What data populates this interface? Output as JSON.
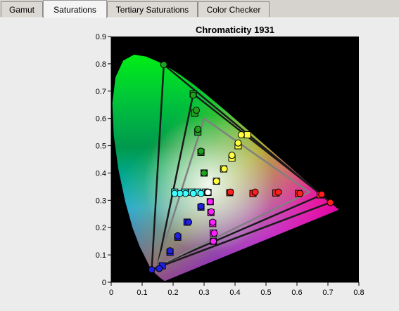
{
  "tabs": [
    {
      "label": "Gamut",
      "active": false
    },
    {
      "label": "Saturations",
      "active": true
    },
    {
      "label": "Tertiary Saturations",
      "active": false
    },
    {
      "label": "Color Checker",
      "active": false
    }
  ],
  "chart_data": {
    "type": "scatter",
    "title": "Chromaticity 1931",
    "xlim": [
      0,
      0.8
    ],
    "ylim": [
      0,
      0.9
    ],
    "x_ticks": [
      "0",
      "0.1",
      "0.2",
      "0.3",
      "0.4",
      "0.5",
      "0.6",
      "0.7",
      "0.8"
    ],
    "y_ticks": [
      "0",
      "0.1",
      "0.2",
      "0.3",
      "0.4",
      "0.5",
      "0.6",
      "0.7",
      "0.8",
      "0.9"
    ],
    "background": "#000000",
    "gamut_triangles": [
      {
        "color": "#1a1a1a",
        "points": [
          [
            0.68,
            0.32
          ],
          [
            0.265,
            0.69
          ],
          [
            0.15,
            0.06
          ]
        ]
      },
      {
        "color": "#1a1a1a",
        "points": [
          [
            0.708,
            0.292
          ],
          [
            0.17,
            0.797
          ],
          [
            0.131,
            0.046
          ]
        ]
      },
      {
        "color": "#808080",
        "points": [
          [
            0.64,
            0.33
          ],
          [
            0.3,
            0.6
          ],
          [
            0.15,
            0.06
          ]
        ]
      }
    ],
    "series": [
      {
        "color": "#ff2020",
        "targets": [
          [
            0.383,
            0.328
          ],
          [
            0.458,
            0.325
          ],
          [
            0.532,
            0.327
          ],
          [
            0.605,
            0.325
          ],
          [
            0.675,
            0.32
          ]
        ],
        "measured": [
          [
            0.385,
            0.33
          ],
          [
            0.465,
            0.33
          ],
          [
            0.54,
            0.33
          ],
          [
            0.61,
            0.325
          ],
          [
            0.68,
            0.322
          ],
          [
            0.708,
            0.292
          ]
        ]
      },
      {
        "color": "#1fa01f",
        "targets": [
          [
            0.3,
            0.4
          ],
          [
            0.29,
            0.476
          ],
          [
            0.28,
            0.55
          ],
          [
            0.27,
            0.62
          ],
          [
            0.265,
            0.69
          ]
        ],
        "measured": [
          [
            0.3,
            0.4
          ],
          [
            0.29,
            0.48
          ],
          [
            0.28,
            0.56
          ],
          [
            0.275,
            0.63
          ],
          [
            0.265,
            0.685
          ],
          [
            0.17,
            0.797
          ]
        ]
      },
      {
        "color": "#2020e0",
        "targets": [
          [
            0.29,
            0.275
          ],
          [
            0.245,
            0.22
          ],
          [
            0.215,
            0.165
          ],
          [
            0.19,
            0.11
          ],
          [
            0.165,
            0.06
          ]
        ],
        "measured": [
          [
            0.29,
            0.278
          ],
          [
            0.25,
            0.22
          ],
          [
            0.215,
            0.17
          ],
          [
            0.19,
            0.115
          ],
          [
            0.155,
            0.05
          ],
          [
            0.131,
            0.046
          ]
        ]
      },
      {
        "color": "#ffff40",
        "targets": [
          [
            0.34,
            0.37
          ],
          [
            0.363,
            0.415
          ],
          [
            0.39,
            0.455
          ],
          [
            0.41,
            0.5
          ],
          [
            0.44,
            0.54
          ]
        ],
        "measured": [
          [
            0.34,
            0.37
          ],
          [
            0.365,
            0.415
          ],
          [
            0.39,
            0.465
          ],
          [
            0.41,
            0.51
          ],
          [
            0.42,
            0.54
          ]
        ]
      },
      {
        "color": "#40ffff",
        "targets": [
          [
            0.305,
            0.33
          ],
          [
            0.28,
            0.33
          ],
          [
            0.26,
            0.33
          ],
          [
            0.238,
            0.33
          ],
          [
            0.205,
            0.33
          ]
        ],
        "measured": [
          [
            0.31,
            0.33
          ],
          [
            0.29,
            0.325
          ],
          [
            0.265,
            0.325
          ],
          [
            0.24,
            0.325
          ],
          [
            0.222,
            0.325
          ],
          [
            0.205,
            0.325
          ]
        ]
      },
      {
        "color": "#ff20ff",
        "targets": [
          [
            0.32,
            0.295
          ],
          [
            0.322,
            0.255
          ],
          [
            0.328,
            0.215
          ],
          [
            0.33,
            0.18
          ],
          [
            0.33,
            0.15
          ]
        ],
        "measured": [
          [
            0.32,
            0.295
          ],
          [
            0.323,
            0.258
          ],
          [
            0.328,
            0.22
          ],
          [
            0.333,
            0.18
          ],
          [
            0.33,
            0.15
          ]
        ]
      }
    ],
    "white_point": [
      0.3127,
      0.329
    ]
  }
}
